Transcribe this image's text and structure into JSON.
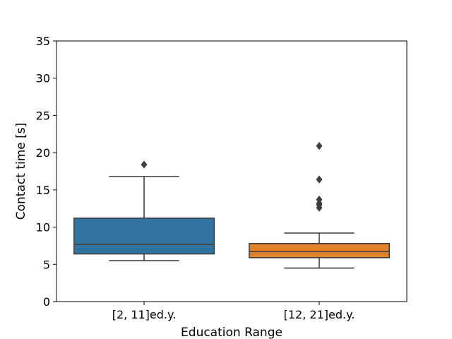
{
  "chart_data": {
    "type": "box",
    "title": "",
    "xlabel": "Education Range",
    "ylabel": "Contact time [s]",
    "ylim": [
      0,
      35
    ],
    "yticks": [
      0,
      5,
      10,
      15,
      20,
      25,
      30,
      35
    ],
    "grid": false,
    "categories": [
      "[2, 11]ed.y.",
      "[12, 21]ed.y."
    ],
    "boxes": [
      {
        "category": "[2, 11]ed.y.",
        "whisker_low": 5.5,
        "q1": 6.4,
        "median": 7.7,
        "q3": 11.2,
        "whisker_high": 16.8,
        "outliers": [
          18.4
        ],
        "color": "#3274a1"
      },
      {
        "category": "[12, 21]ed.y.",
        "whisker_low": 4.5,
        "q1": 5.9,
        "median": 6.7,
        "q3": 7.8,
        "whisker_high": 9.2,
        "outliers": [
          12.6,
          13.0,
          13.2,
          13.7,
          16.4,
          20.9
        ],
        "color": "#e1812c"
      }
    ],
    "line_color": "#3f3f3f"
  }
}
